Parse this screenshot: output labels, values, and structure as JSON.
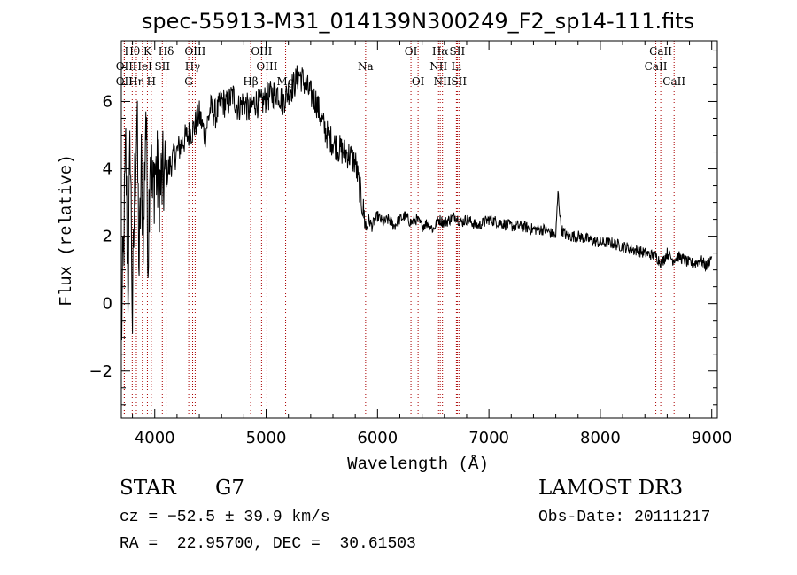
{
  "chart_data": {
    "type": "line",
    "title": "spec-55913-M31_014139N300249_F2_sp14-111.fits",
    "xlabel": "Wavelength (Å)",
    "ylabel": "Flux (relative)",
    "xlim": [
      3700,
      9050
    ],
    "ylim": [
      -3.4,
      7.8
    ],
    "xticks": [
      4000,
      5000,
      6000,
      7000,
      8000,
      9000
    ],
    "yticks": [
      -2,
      0,
      2,
      4,
      6
    ],
    "xtick_labels": [
      "4000",
      "5000",
      "6000",
      "7000",
      "8000",
      "9000"
    ],
    "ytick_labels": [
      "−2",
      "0",
      "2",
      "4",
      "6"
    ],
    "line_color": "#000000",
    "marker_color": "#aa0000",
    "grid": false,
    "spectrum": {
      "x": [
        3700,
        3720,
        3740,
        3760,
        3780,
        3800,
        3820,
        3840,
        3860,
        3880,
        3900,
        3920,
        3940,
        3960,
        3980,
        4000,
        4050,
        4100,
        4150,
        4200,
        4250,
        4300,
        4350,
        4400,
        4450,
        4500,
        4550,
        4600,
        4650,
        4700,
        4750,
        4800,
        4850,
        4900,
        4950,
        5000,
        5050,
        5100,
        5150,
        5200,
        5250,
        5300,
        5350,
        5400,
        5450,
        5500,
        5550,
        5600,
        5650,
        5700,
        5750,
        5800,
        5850,
        5900,
        5920,
        5950,
        6000,
        6050,
        6100,
        6150,
        6200,
        6250,
        6300,
        6350,
        6400,
        6450,
        6500,
        6550,
        6600,
        6650,
        6700,
        6750,
        6800,
        6850,
        6900,
        6950,
        7000,
        7100,
        7200,
        7300,
        7400,
        7500,
        7600,
        7620,
        7650,
        7700,
        7800,
        7900,
        8000,
        8100,
        8200,
        8300,
        8400,
        8500,
        8550,
        8600,
        8650,
        8700,
        8750,
        8800,
        8850,
        8900,
        8950,
        9000
      ],
      "y": [
        -1.0,
        1.5,
        4.5,
        0.5,
        5.0,
        -0.5,
        3.5,
        5.5,
        1.0,
        4.0,
        2.0,
        6.0,
        1.5,
        5.0,
        3.0,
        4.0,
        3.5,
        3.8,
        4.2,
        4.5,
        4.8,
        5.0,
        5.2,
        5.6,
        5.0,
        5.8,
        5.6,
        6.0,
        5.9,
        6.2,
        5.8,
        6.0,
        5.7,
        6.0,
        5.9,
        6.1,
        6.2,
        6.3,
        6.0,
        6.3,
        6.5,
        6.8,
        6.5,
        6.2,
        6.0,
        5.4,
        5.0,
        4.8,
        4.6,
        4.5,
        4.4,
        4.2,
        3.2,
        2.2,
        2.5,
        2.3,
        2.6,
        2.4,
        2.5,
        2.3,
        2.5,
        2.6,
        2.4,
        2.5,
        2.3,
        2.4,
        2.2,
        2.5,
        2.4,
        2.5,
        2.6,
        2.4,
        2.5,
        2.4,
        2.3,
        2.4,
        2.5,
        2.4,
        2.3,
        2.3,
        2.2,
        2.2,
        2.0,
        3.3,
        2.2,
        2.0,
        2.0,
        1.9,
        1.8,
        1.8,
        1.7,
        1.6,
        1.5,
        1.4,
        1.2,
        1.5,
        1.3,
        1.4,
        1.3,
        1.2,
        1.2,
        1.3,
        1.1,
        1.4
      ]
    },
    "line_markers": [
      {
        "label": "Hθ",
        "x": 3798,
        "row": 1
      },
      {
        "label": "OII",
        "x": 3727,
        "row": 2
      },
      {
        "label": "OII",
        "x": 3727,
        "row": 3
      },
      {
        "label": "Hη",
        "x": 3835,
        "row": 3
      },
      {
        "label": "HeI",
        "x": 3889,
        "row": 2
      },
      {
        "label": "K",
        "x": 3934,
        "row": 1
      },
      {
        "label": "H",
        "x": 3969,
        "row": 3
      },
      {
        "label": "SII",
        "x": 4068,
        "row": 2
      },
      {
        "label": "Hδ",
        "x": 4102,
        "row": 1
      },
      {
        "label": "OIII",
        "x": 4363,
        "row": 1
      },
      {
        "label": "Hγ",
        "x": 4340,
        "row": 2
      },
      {
        "label": "G",
        "x": 4305,
        "row": 3
      },
      {
        "label": "Hβ",
        "x": 4861,
        "row": 3
      },
      {
        "label": "OIII",
        "x": 4959,
        "row": 1
      },
      {
        "label": "OIII",
        "x": 5007,
        "row": 2
      },
      {
        "label": "Mg",
        "x": 5175,
        "row": 3
      },
      {
        "label": "Na",
        "x": 5893,
        "row": 2
      },
      {
        "label": "OI",
        "x": 6300,
        "row": 1
      },
      {
        "label": "OI",
        "x": 6364,
        "row": 3
      },
      {
        "label": "Hα",
        "x": 6563,
        "row": 1
      },
      {
        "label": "NII",
        "x": 6548,
        "row": 2
      },
      {
        "label": "NII",
        "x": 6583,
        "row": 3
      },
      {
        "label": "SII",
        "x": 6716,
        "row": 1
      },
      {
        "label": "Li",
        "x": 6708,
        "row": 2
      },
      {
        "label": "SII",
        "x": 6731,
        "row": 3
      },
      {
        "label": "CaII",
        "x": 8542,
        "row": 1
      },
      {
        "label": "CaII",
        "x": 8498,
        "row": 2
      },
      {
        "label": "CaII",
        "x": 8662,
        "row": 3
      }
    ]
  },
  "info": {
    "object_type": "STAR",
    "subclass": "G7",
    "survey": "LAMOST DR3",
    "velocity": "cz = −52.5 ± 39.9 km/s",
    "obs_date": "Obs-Date: 20111217",
    "coords": "RA =  22.95700, DEC =  30.61503"
  }
}
